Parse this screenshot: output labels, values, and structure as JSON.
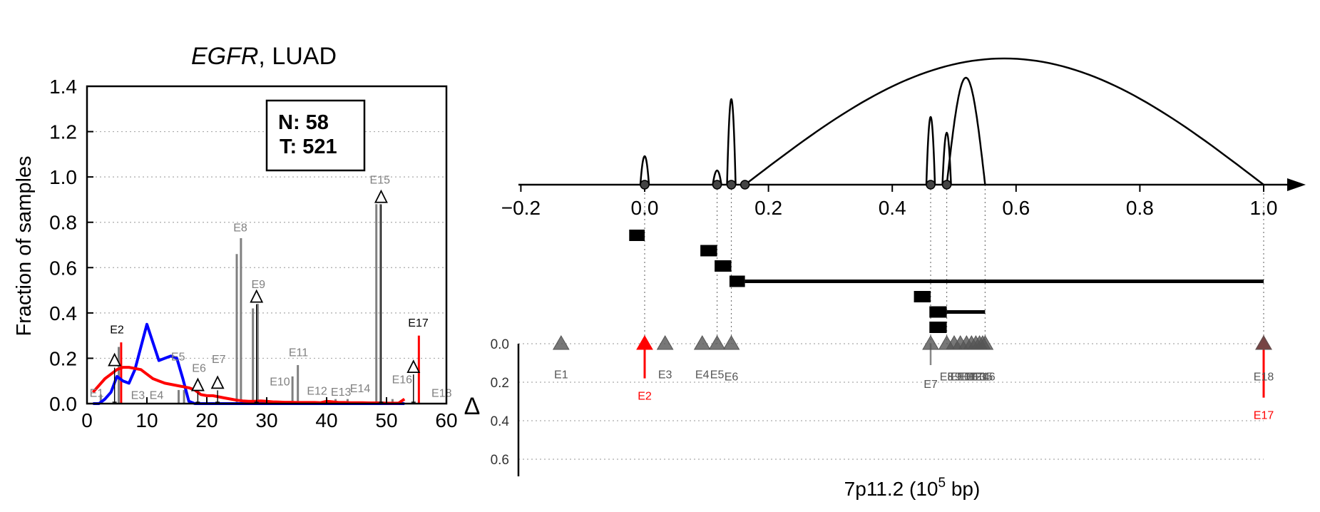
{
  "left_panel": {
    "title_italic": "EGFR",
    "title_rest": ", LUAD",
    "ylabel": "Fraction of samples",
    "counts": {
      "n_label": "N: 58",
      "t_label": "T: 521"
    },
    "colors": {
      "normal": "#0000ff",
      "tumor": "#ff0000",
      "exon_bar": "#808080",
      "axis": "#000000"
    }
  },
  "right_panel": {
    "xlabel": "7p11.2 (10",
    "xlabel_sup": "5",
    "xlabel_tail": " bp)",
    "delta_label": "Δ",
    "colors": {
      "highlight": "#ff0000",
      "marker": "#555555",
      "guide": "#808080"
    }
  },
  "chart_data": [
    {
      "type": "line",
      "title": "EGFR, LUAD",
      "ylabel": "Fraction of samples",
      "xlim": [
        0,
        60
      ],
      "ylim": [
        0,
        1.4
      ],
      "xticks": [
        0,
        10,
        20,
        30,
        40,
        50,
        60
      ],
      "yticks": [
        0.0,
        0.2,
        0.4,
        0.6,
        0.8,
        1.0,
        1.2,
        1.4
      ],
      "grid": "horizontal dotted",
      "series": [
        {
          "color": "#0000ff",
          "x": [
            1,
            2,
            3,
            4,
            5,
            6,
            7,
            8,
            9,
            10,
            11,
            12,
            13,
            14,
            15,
            16,
            17,
            18,
            19,
            20,
            21,
            22,
            23,
            24,
            25,
            26,
            27,
            28,
            29,
            30,
            31,
            32,
            33,
            34,
            35,
            36,
            37,
            38,
            39,
            40,
            41,
            42,
            43,
            44,
            45,
            46,
            47,
            48,
            49,
            50,
            51,
            52,
            53
          ],
          "values": [
            0,
            0,
            0.02,
            0.05,
            0.12,
            0.1,
            0.09,
            0.15,
            0.25,
            0.35,
            0.27,
            0.19,
            0.2,
            0.21,
            0.2,
            0.11,
            0.01,
            0,
            0,
            0,
            0,
            0,
            0,
            0,
            0,
            0,
            0,
            0,
            0,
            0,
            0,
            0,
            0,
            0,
            0,
            0,
            0,
            0,
            0,
            0,
            0,
            0,
            0,
            0,
            0,
            0,
            0,
            0,
            0,
            0,
            0,
            0,
            0
          ]
        },
        {
          "color": "#ff0000",
          "x": [
            1,
            2,
            3,
            4,
            5,
            6,
            7,
            8,
            9,
            10,
            11,
            12,
            13,
            14,
            15,
            16,
            17,
            18,
            19,
            20,
            21,
            22,
            23,
            24,
            25,
            26,
            27,
            28,
            29,
            30,
            31,
            32,
            33,
            34,
            35,
            36,
            37,
            38,
            39,
            40,
            41,
            42,
            43,
            44,
            45,
            46,
            47,
            48,
            49,
            50,
            51,
            52,
            53
          ],
          "values": [
            0.05,
            0.08,
            0.11,
            0.13,
            0.15,
            0.16,
            0.16,
            0.155,
            0.15,
            0.13,
            0.11,
            0.1,
            0.09,
            0.085,
            0.08,
            0.075,
            0.07,
            0.06,
            0.04,
            0.035,
            0.035,
            0.03,
            0.025,
            0.02,
            0.015,
            0.012,
            0.01,
            0.01,
            0.012,
            0.01,
            0.008,
            0.007,
            0.006,
            0.006,
            0.005,
            0.005,
            0.005,
            0.005,
            0.004,
            0.01,
            0.008,
            0.005,
            0.005,
            0.004,
            0.004,
            0.004,
            0.003,
            0.003,
            0.003,
            0.002,
            0.002,
            0.002,
            0.02
          ]
        }
      ],
      "exon_bars": [
        {
          "x": 5.3,
          "value": 0.25
        },
        {
          "x": 25.0,
          "value": 0.66
        },
        {
          "x": 25.7,
          "value": 0.73
        },
        {
          "x": 27.7,
          "value": 0.42
        },
        {
          "x": 28.5,
          "value": 0.44
        },
        {
          "x": 34.3,
          "value": 0.12
        },
        {
          "x": 35.2,
          "value": 0.17
        },
        {
          "x": 48.3,
          "value": 0.88
        },
        {
          "x": 49.0,
          "value": 0.88
        },
        {
          "x": 2.3,
          "value": 0.04
        },
        {
          "x": 15.3,
          "value": 0.06
        },
        {
          "x": 16.2,
          "value": 0.06
        },
        {
          "x": 41.5,
          "value": 0.02
        },
        {
          "x": 43.5,
          "value": 0.02
        },
        {
          "x": 51.0,
          "value": 0.02
        }
      ],
      "tumor_markers": [
        {
          "x": 5.7,
          "value": 0.27
        },
        {
          "x": 55.4,
          "value": 0.3
        }
      ],
      "delta_markers": [
        {
          "x": 4.6,
          "value": 0.19
        },
        {
          "x": 18.5,
          "value": 0.08
        },
        {
          "x": 21.8,
          "value": 0.09
        },
        {
          "x": 28.3,
          "value": 0.47
        },
        {
          "x": 49.1,
          "value": 0.91
        },
        {
          "x": 54.5,
          "value": 0.16
        }
      ],
      "exon_labels": [
        {
          "text": "E1",
          "x": 1.6,
          "value": 0.03,
          "color": "#808080"
        },
        {
          "text": "E2",
          "x": 5.0,
          "value": 0.31,
          "color": "#000000"
        },
        {
          "text": "E3",
          "x": 8.5,
          "value": 0.02,
          "color": "#808080"
        },
        {
          "text": "E4",
          "x": 11.6,
          "value": 0.02,
          "color": "#808080"
        },
        {
          "text": "E5",
          "x": 15.2,
          "value": 0.19,
          "color": "#808080"
        },
        {
          "text": "E6",
          "x": 18.7,
          "value": 0.14,
          "color": "#808080"
        },
        {
          "text": "E7",
          "x": 22.0,
          "value": 0.18,
          "color": "#808080"
        },
        {
          "text": "E8",
          "x": 25.6,
          "value": 0.76,
          "color": "#808080"
        },
        {
          "text": "E9",
          "x": 28.6,
          "value": 0.51,
          "color": "#808080"
        },
        {
          "text": "E10",
          "x": 32.2,
          "value": 0.08,
          "color": "#808080"
        },
        {
          "text": "E11",
          "x": 35.3,
          "value": 0.21,
          "color": "#808080"
        },
        {
          "text": "E12",
          "x": 38.4,
          "value": 0.04,
          "color": "#808080"
        },
        {
          "text": "E13",
          "x": 42.4,
          "value": 0.035,
          "color": "#808080"
        },
        {
          "text": "E14",
          "x": 45.6,
          "value": 0.05,
          "color": "#808080"
        },
        {
          "text": "E15",
          "x": 48.9,
          "value": 0.97,
          "color": "#808080"
        },
        {
          "text": "E16",
          "x": 52.6,
          "value": 0.09,
          "color": "#808080"
        },
        {
          "text": "E17",
          "x": 55.3,
          "value": 0.34,
          "color": "#000000"
        },
        {
          "text": "E18",
          "x": 59.2,
          "value": 0.03,
          "color": "#808080"
        }
      ]
    },
    {
      "type": "scatter",
      "xlabel": "7p11.2 (10^5 bp)",
      "xlim": [
        -0.2,
        1.0
      ],
      "xticks": [
        -0.2,
        0.0,
        0.2,
        0.4,
        0.6,
        0.8,
        1.0
      ],
      "xtick_labels": [
        "−0.2",
        "0.0",
        "0.2",
        "0.4",
        "0.6",
        "0.8",
        "1.0"
      ],
      "delta_axis": {
        "label": "Δ",
        "ylim": [
          0.0,
          0.7
        ],
        "yticks": [
          0.0,
          0.2,
          0.4,
          0.6
        ],
        "ytick_labels": [
          "0.0",
          "0.2",
          "0.4",
          "0.6"
        ]
      },
      "junction_nodes": [
        0.0,
        0.117,
        0.14,
        0.162,
        0.462,
        0.488
      ],
      "junction_spikes": [
        {
          "x": 0.0,
          "height": 0.4
        },
        {
          "x": 0.117,
          "height": 0.2
        },
        {
          "x": 0.14,
          "height": 1.2
        },
        {
          "x": 0.462,
          "height": 0.95
        },
        {
          "x": 0.488,
          "height": 0.73
        }
      ],
      "arcs": [
        {
          "from": 0.162,
          "to": 1.0,
          "height": 1.77
        },
        {
          "from": 0.488,
          "to": 0.55,
          "height": 1.5
        }
      ],
      "guide_lines": [
        0.0,
        0.117,
        0.14,
        0.462,
        0.488,
        0.55,
        1.0
      ],
      "transcripts": [
        {
          "start": -0.025,
          "thick_end": 0.0,
          "end": 0.0,
          "row": 0
        },
        {
          "start": 0.09,
          "thick_end": 0.117,
          "end": 0.117,
          "row": 1
        },
        {
          "start": 0.113,
          "thick_end": 0.14,
          "end": 0.142,
          "row": 2
        },
        {
          "start": 0.137,
          "thick_end": 0.162,
          "end": 1.0,
          "row": 3
        },
        {
          "start": 0.435,
          "thick_end": 0.462,
          "end": 0.462,
          "row": 4
        },
        {
          "start": 0.46,
          "thick_end": 0.488,
          "end": 0.55,
          "row": 5
        },
        {
          "start": 0.46,
          "thick_end": 0.488,
          "end": 0.488,
          "row": 6
        }
      ],
      "exon_markers": [
        {
          "label": "E1",
          "x": -0.135,
          "delta": 0.0,
          "color": "#555555",
          "label_color": "#555555",
          "label_value": 0.18
        },
        {
          "label": "E2",
          "x": 0.0,
          "delta": 0.18,
          "color": "#ff0000",
          "label_color": "#ff0000",
          "label_value": 0.29
        },
        {
          "label": "E3",
          "x": 0.033,
          "delta": 0.0,
          "color": "#555555",
          "label_color": "#555555",
          "label_value": 0.18
        },
        {
          "label": "E4",
          "x": 0.093,
          "delta": 0.0,
          "color": "#555555",
          "label_color": "#555555",
          "label_value": 0.18
        },
        {
          "label": "E5",
          "x": 0.117,
          "delta": 0.0,
          "color": "#555555",
          "label_color": "#555555",
          "label_value": 0.18
        },
        {
          "label": "E6",
          "x": 0.14,
          "delta": 0.0,
          "color": "#555555",
          "label_color": "#555555",
          "label_value": 0.19
        },
        {
          "label": "E7",
          "x": 0.462,
          "delta": 0.0,
          "color": "#555555",
          "label_color": "#555555",
          "label_value": 0.23
        },
        {
          "label": "E8",
          "x": 0.488,
          "delta": 0.0,
          "color": "#555555",
          "label_color": "#555555",
          "label_value": 0.19
        },
        {
          "label": "E9",
          "x": 0.5,
          "delta": 0.0,
          "color": "#555555",
          "label_color": "#555555",
          "label_value": 0.19
        },
        {
          "label": "E10",
          "x": 0.51,
          "delta": 0.0,
          "color": "#555555",
          "label_color": "#555555",
          "label_value": 0.19
        },
        {
          "label": "E11",
          "x": 0.52,
          "delta": 0.0,
          "color": "#555555",
          "label_color": "#555555",
          "label_value": 0.19
        },
        {
          "label": "E12",
          "x": 0.528,
          "delta": 0.0,
          "color": "#555555",
          "label_color": "#555555",
          "label_value": 0.19
        },
        {
          "label": "E13",
          "x": 0.535,
          "delta": 0.0,
          "color": "#555555",
          "label_color": "#555555",
          "label_value": 0.19
        },
        {
          "label": "E14",
          "x": 0.541,
          "delta": 0.0,
          "color": "#555555",
          "label_color": "#555555",
          "label_value": 0.19
        },
        {
          "label": "E15",
          "x": 0.546,
          "delta": 0.0,
          "color": "#555555",
          "label_color": "#555555",
          "label_value": 0.19
        },
        {
          "label": "E16",
          "x": 0.55,
          "delta": 0.0,
          "color": "#555555",
          "label_color": "#555555",
          "label_value": 0.19
        },
        {
          "label": "E17",
          "x": 1.0,
          "delta": 0.28,
          "color": "#ff0000",
          "label_color": "#ff0000",
          "label_value": 0.39
        },
        {
          "label": "E18",
          "x": 1.0,
          "delta": 0.0,
          "color": "#555555",
          "label_color": "#555555",
          "label_value": 0.19
        }
      ]
    }
  ]
}
